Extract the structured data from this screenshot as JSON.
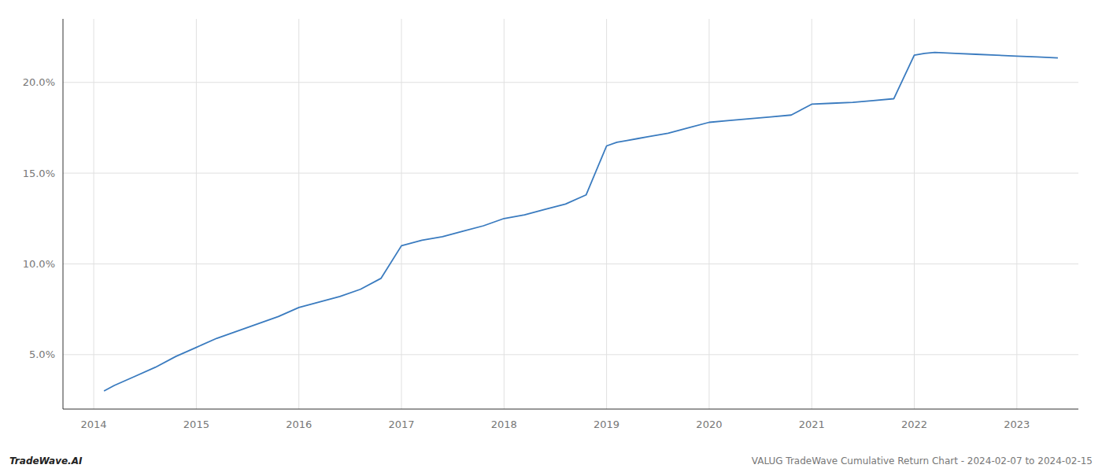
{
  "chart_data": {
    "type": "line",
    "x": [
      2014.1,
      2014.2,
      2014.4,
      2014.6,
      2014.8,
      2015.0,
      2015.2,
      2015.4,
      2015.6,
      2015.8,
      2016.0,
      2016.2,
      2016.4,
      2016.6,
      2016.8,
      2017.0,
      2017.2,
      2017.4,
      2017.6,
      2017.8,
      2018.0,
      2018.2,
      2018.4,
      2018.6,
      2018.8,
      2019.0,
      2019.1,
      2019.2,
      2019.3,
      2019.4,
      2019.5,
      2019.6,
      2019.8,
      2020.0,
      2020.2,
      2020.4,
      2020.6,
      2020.8,
      2021.0,
      2021.2,
      2021.4,
      2021.6,
      2021.8,
      2022.0,
      2022.1,
      2022.2,
      2022.4,
      2022.6,
      2022.8,
      2023.0,
      2023.2,
      2023.4
    ],
    "values": [
      3.0,
      3.3,
      3.8,
      4.3,
      4.9,
      5.4,
      5.9,
      6.3,
      6.7,
      7.1,
      7.6,
      7.9,
      8.2,
      8.6,
      9.2,
      11.0,
      11.3,
      11.5,
      11.8,
      12.1,
      12.5,
      12.7,
      13.0,
      13.3,
      13.8,
      16.5,
      16.7,
      16.8,
      16.9,
      17.0,
      17.1,
      17.2,
      17.5,
      17.8,
      17.9,
      18.0,
      18.1,
      18.2,
      18.8,
      18.85,
      18.9,
      19.0,
      19.1,
      21.5,
      21.6,
      21.65,
      21.6,
      21.55,
      21.5,
      21.45,
      21.4,
      21.35
    ],
    "color": "#3a7bbf",
    "xlim": [
      2013.7,
      2023.6
    ],
    "ylim": [
      2.0,
      23.5
    ],
    "xticks": [
      2014,
      2015,
      2016,
      2017,
      2018,
      2019,
      2020,
      2021,
      2022,
      2023
    ],
    "yticks": [
      {
        "value": 5.0,
        "label": "5.0%"
      },
      {
        "value": 10.0,
        "label": "10.0%"
      },
      {
        "value": 15.0,
        "label": "15.0%"
      },
      {
        "value": 20.0,
        "label": "20.0%"
      }
    ],
    "grid": true,
    "annotations": [
      "TradeWave.AI",
      "VALUG TradeWave Cumulative Return Chart - 2024-02-07 to 2024-02-15"
    ]
  }
}
